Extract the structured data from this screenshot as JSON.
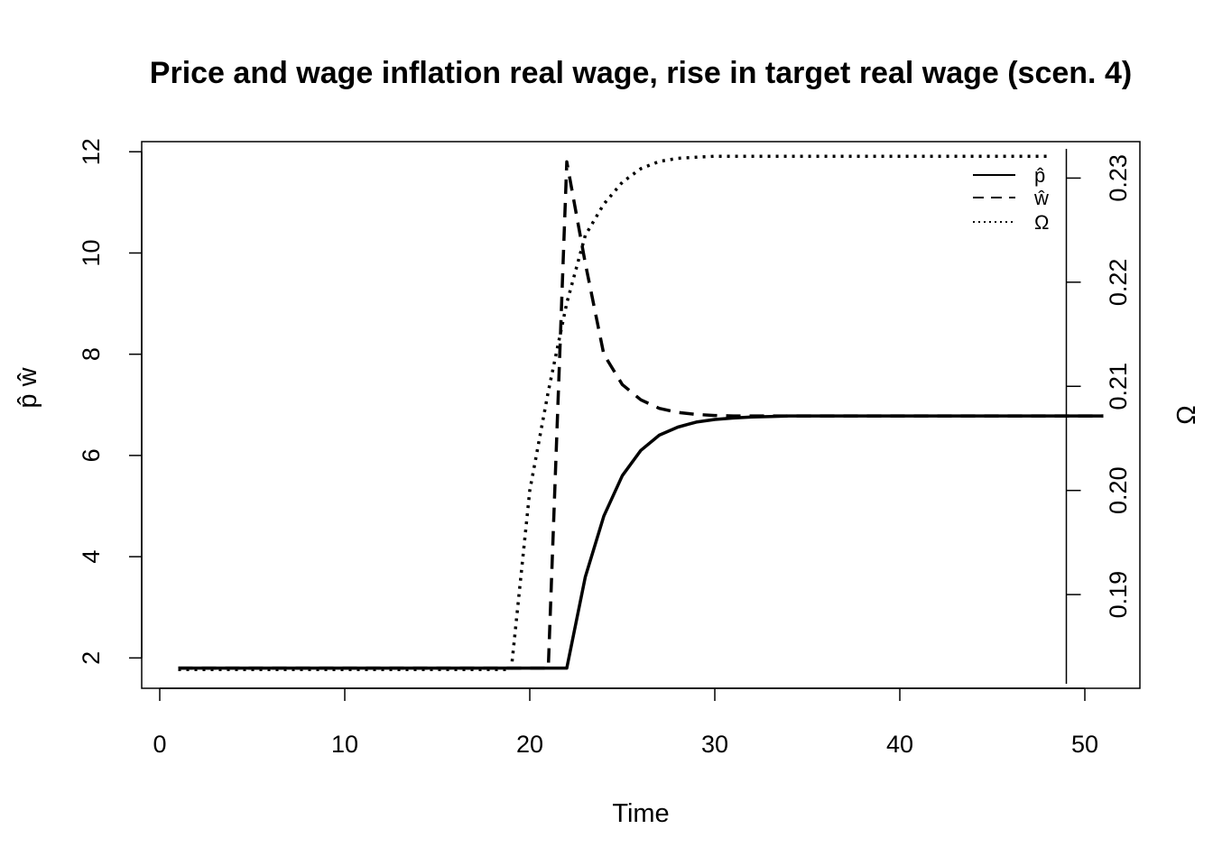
{
  "chart_data": {
    "type": "line",
    "title": "Price and wage inflation real wage, rise in target real wage (scen. 4)",
    "xlabel": "Time",
    "ylabel_left": "p̂  ŵ",
    "ylabel_right": "Ω",
    "xlim": [
      0,
      52
    ],
    "ylim_left": [
      1.4,
      12.2
    ],
    "ylim_right": [
      0.181,
      0.2335
    ],
    "x_ticks": [
      "0",
      "10",
      "20",
      "30",
      "40",
      "50"
    ],
    "y_ticks_left": [
      "2",
      "4",
      "6",
      "8",
      "10",
      "12"
    ],
    "y_ticks_right": [
      "0.19",
      "0.20",
      "0.21",
      "0.22",
      "0.23"
    ],
    "grid": false,
    "legend_position": "top-right",
    "legend": [
      "p̂",
      "ŵ",
      "Ω"
    ],
    "series": [
      {
        "name": "p̂",
        "axis": "left",
        "line_style": "solid",
        "x": [
          1,
          21,
          22,
          23,
          24,
          25,
          26,
          27,
          28,
          29,
          30,
          31,
          32,
          33,
          34,
          35,
          40,
          45,
          51
        ],
        "y": [
          1.8,
          1.8,
          1.8,
          3.6,
          4.8,
          5.6,
          6.1,
          6.4,
          6.56,
          6.66,
          6.71,
          6.74,
          6.76,
          6.77,
          6.78,
          6.78,
          6.78,
          6.78,
          6.78
        ]
      },
      {
        "name": "ŵ",
        "axis": "left",
        "line_style": "dashed",
        "x": [
          1,
          20,
          21,
          22,
          23,
          24,
          25,
          26,
          27,
          28,
          29,
          30,
          31,
          32,
          33,
          34,
          35,
          40,
          45,
          51
        ],
        "y": [
          1.8,
          1.8,
          1.8,
          11.8,
          9.8,
          8.0,
          7.4,
          7.1,
          6.93,
          6.85,
          6.81,
          6.79,
          6.78,
          6.78,
          6.78,
          6.78,
          6.78,
          6.78,
          6.78,
          6.78
        ]
      },
      {
        "name": "Ω",
        "axis": "right",
        "line_style": "dotted",
        "x": [
          1,
          19,
          20,
          21,
          22,
          23,
          24,
          25,
          26,
          27,
          28,
          29,
          30,
          31,
          32,
          35,
          40,
          45,
          48
        ],
        "y": [
          0.1828,
          0.1828,
          0.2,
          0.2095,
          0.218,
          0.2245,
          0.2275,
          0.2296,
          0.2309,
          0.2316,
          0.2319,
          0.232,
          0.2321,
          0.2321,
          0.2321,
          0.2321,
          0.2321,
          0.2321,
          0.2321
        ]
      }
    ]
  }
}
